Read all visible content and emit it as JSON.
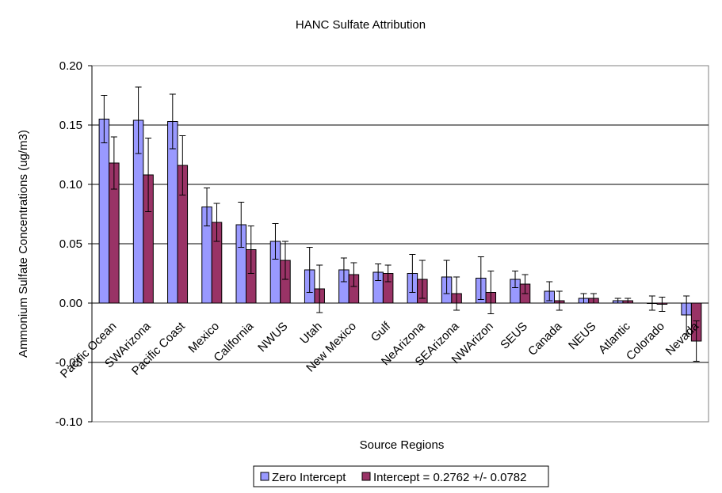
{
  "chart_data": {
    "type": "bar",
    "title": "HANC Sulfate Attribution",
    "xlabel": "Source Regions",
    "ylabel": "Ammonium Sulfate Concentrations (ug/m3)",
    "ylim": [
      -0.1,
      0.2
    ],
    "yticks": [
      "0.20",
      "0.15",
      "0.10",
      "0.05",
      "0.00",
      "-0.05",
      "-0.10"
    ],
    "ytick_values": [
      0.2,
      0.15,
      0.1,
      0.05,
      0.0,
      -0.05,
      -0.1
    ],
    "grid": true,
    "legend_position": "bottom",
    "categories": [
      "Pacific Ocean",
      "SWArizona",
      "Pacific Coast",
      "Mexico",
      "California",
      "NWUS",
      "Utah",
      "New Mexico",
      "Gulf",
      "NeArizona",
      "SEArizona",
      "NWArizon",
      "SEUS",
      "Canada",
      "NEUS",
      "Atlantic",
      "Colorado",
      "Nevada"
    ],
    "series": [
      {
        "name": "Zero Intercept",
        "color": "#9999ff",
        "values": [
          0.155,
          0.154,
          0.153,
          0.081,
          0.066,
          0.052,
          0.028,
          0.028,
          0.026,
          0.025,
          0.022,
          0.021,
          0.02,
          0.01,
          0.004,
          0.002,
          0.0,
          -0.01
        ],
        "errors": [
          0.02,
          0.028,
          0.023,
          0.016,
          0.019,
          0.015,
          0.019,
          0.01,
          0.007,
          0.016,
          0.014,
          0.018,
          0.007,
          0.008,
          0.004,
          0.002,
          0.006,
          0.016
        ]
      },
      {
        "name": "Intercept = 0.2762 +/- 0.0782",
        "color": "#993366",
        "values": [
          0.118,
          0.108,
          0.116,
          0.068,
          0.045,
          0.036,
          0.012,
          0.024,
          0.025,
          0.02,
          0.008,
          0.009,
          0.016,
          0.002,
          0.004,
          0.002,
          -0.001,
          -0.032
        ],
        "errors": [
          0.022,
          0.031,
          0.025,
          0.016,
          0.02,
          0.016,
          0.02,
          0.01,
          0.007,
          0.016,
          0.014,
          0.018,
          0.008,
          0.008,
          0.004,
          0.002,
          0.006,
          0.017
        ]
      }
    ]
  }
}
